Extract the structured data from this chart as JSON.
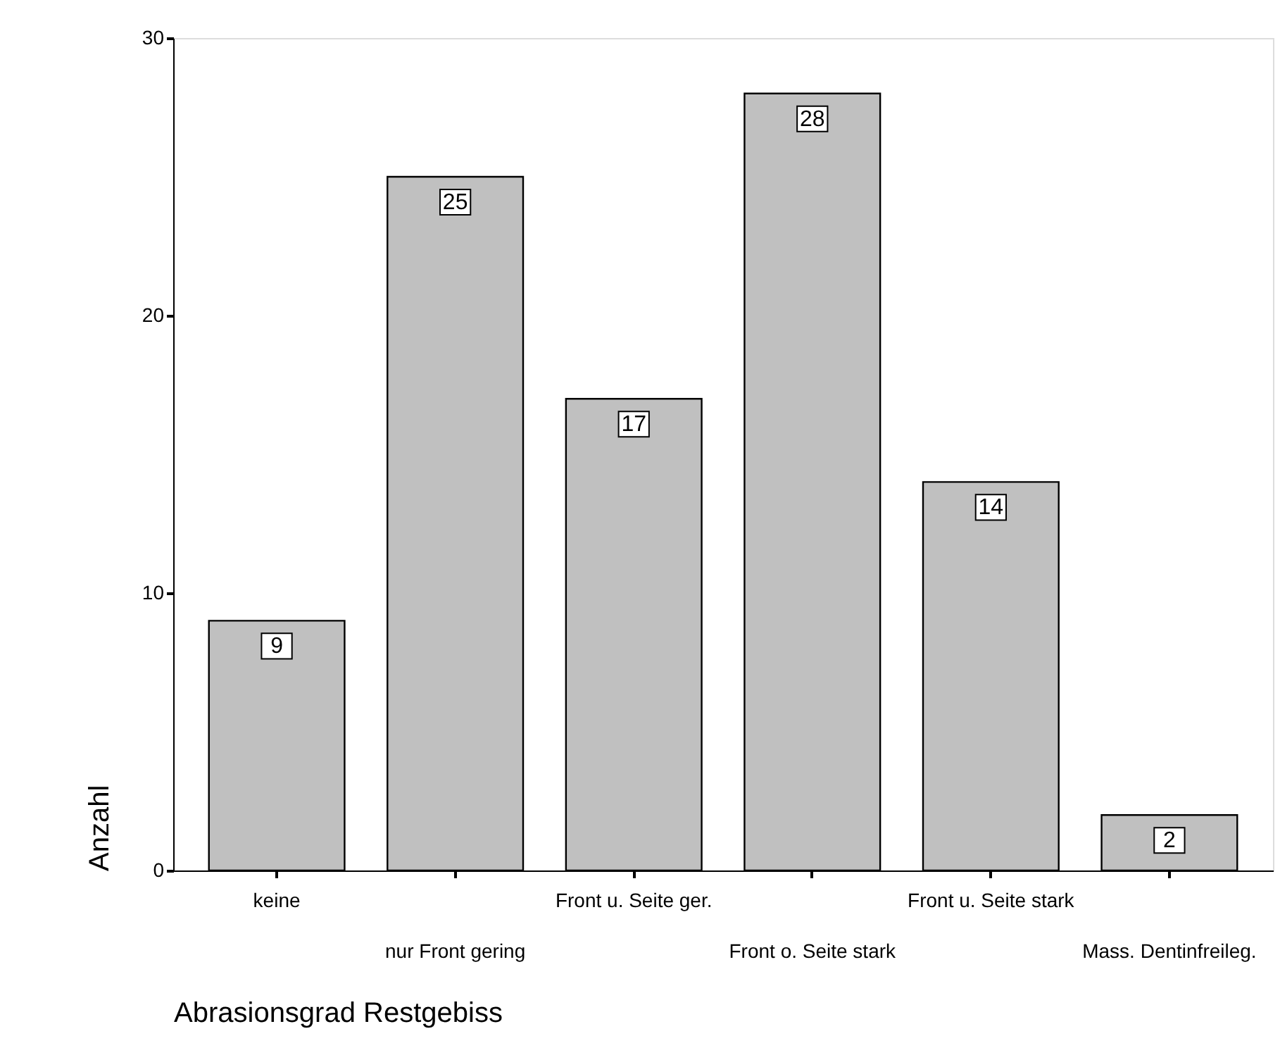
{
  "chart_data": {
    "type": "bar",
    "xlabel": "Abrasionsgrad Restgebiss",
    "ylabel": "Anzahl",
    "categories": [
      "keine",
      "nur Front gering",
      "Front u. Seite ger.",
      "Front o. Seite stark",
      "Front u. Seite stark",
      "Mass. Dentinfreileg."
    ],
    "values": [
      9,
      25,
      17,
      28,
      14,
      2
    ],
    "color": "#c0c0c0",
    "ylim": [
      0,
      30
    ],
    "yticks": [
      0,
      10,
      20,
      30
    ],
    "grid": false,
    "data_labels": true
  }
}
